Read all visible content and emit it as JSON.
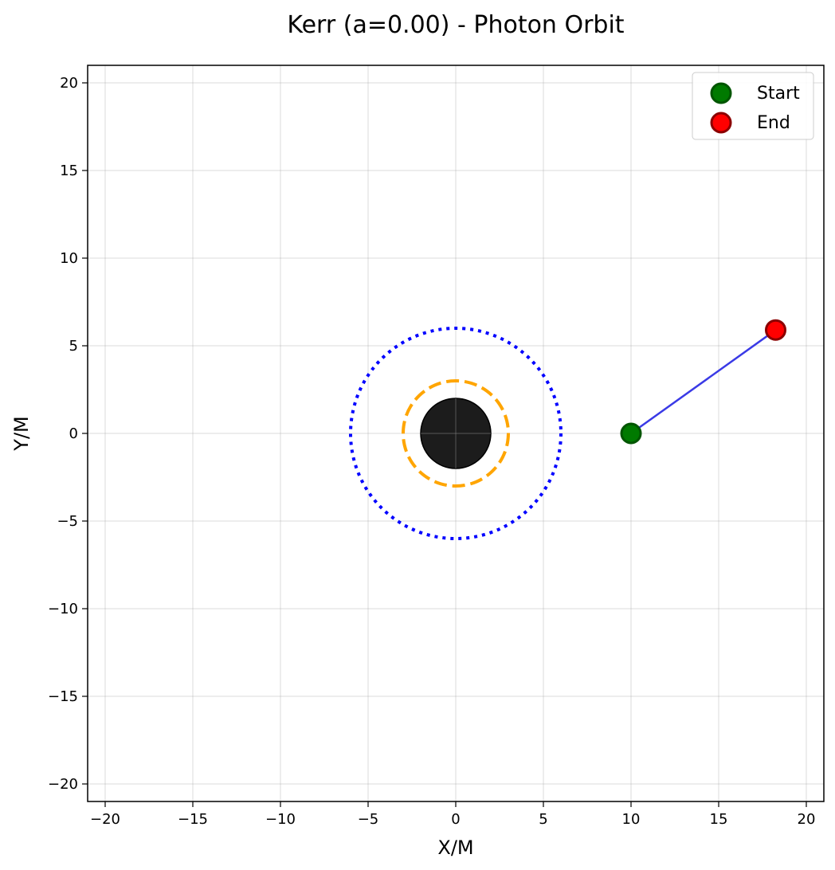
{
  "chart_data": {
    "type": "line",
    "title": "Kerr (a=0.00) - Photon Orbit",
    "xlabel": "X/M",
    "ylabel": "Y/M",
    "xlim": [
      -21,
      21
    ],
    "ylim": [
      -21,
      21
    ],
    "x_ticks": [
      -20,
      -15,
      -10,
      -5,
      0,
      5,
      10,
      15,
      20
    ],
    "y_ticks": [
      -20,
      -15,
      -10,
      -5,
      0,
      5,
      10,
      15,
      20
    ],
    "x_tick_labels": [
      "−20",
      "−15",
      "−10",
      "−5",
      "0",
      "5",
      "10",
      "15",
      "20"
    ],
    "y_tick_labels": [
      "−20",
      "−15",
      "−10",
      "−5",
      "0",
      "5",
      "10",
      "15",
      "20"
    ],
    "grid": true,
    "legend_position": "top-right",
    "black_hole": {
      "center": [
        0,
        0
      ],
      "radius": 2,
      "color": "#1c1c1c"
    },
    "photon_sphere": {
      "radius": 3,
      "color": "#ffa500",
      "style": "dashed"
    },
    "isco": {
      "radius": 6,
      "color": "#0000ff",
      "style": "dotted"
    },
    "trajectory": {
      "color": "#3a3ae6",
      "x": [
        10.0,
        18.25
      ],
      "y": [
        0.0,
        5.9
      ]
    },
    "markers": [
      {
        "label": "Start",
        "x": 10.0,
        "y": 0.0,
        "fill": "#007a00",
        "edge": "#005500"
      },
      {
        "label": "End",
        "x": 18.25,
        "y": 5.9,
        "fill": "#ff0000",
        "edge": "#8b0000"
      }
    ]
  }
}
